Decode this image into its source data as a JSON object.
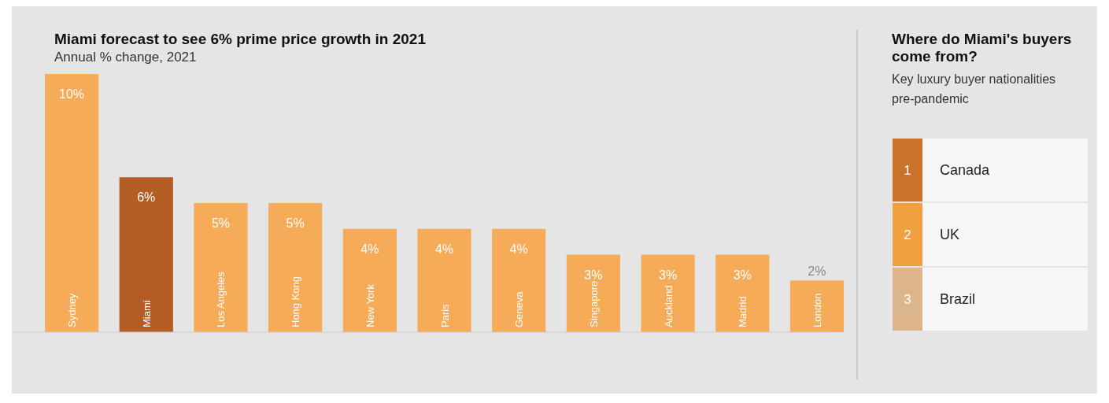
{
  "chart_data": [
    {
      "type": "bar",
      "title": "Miami forecast to see 6% prime price growth in 2021",
      "subtitle": "Annual % change, 2021",
      "categories": [
        "Sydney",
        "Miami",
        "Los Angeles",
        "Hong Kong",
        "New York",
        "Paris",
        "Geneva",
        "Singapore",
        "Auckland",
        "Madrid",
        "London"
      ],
      "values": [
        10,
        6,
        5,
        5,
        4,
        4,
        4,
        3,
        3,
        3,
        2
      ],
      "value_labels": [
        "10%",
        "6%",
        "5%",
        "5%",
        "4%",
        "4%",
        "4%",
        "3%",
        "3%",
        "3%",
        "2%"
      ],
      "colors": [
        "#f6ab59",
        "#b35c24",
        "#f6ab59",
        "#f6ab59",
        "#f6ab59",
        "#f6ab59",
        "#f6ab59",
        "#f6ab59",
        "#f6ab59",
        "#f6ab59",
        "#f6ab59"
      ]
    },
    {
      "type": "other",
      "title": "Where do Miami's buyers come from?",
      "subtitle": "Key luxury buyer nationalities pre-pandemic",
      "annotations": [
        "1",
        "Canada",
        "2",
        "UK",
        "3",
        "Brazil"
      ]
    }
  ]
}
